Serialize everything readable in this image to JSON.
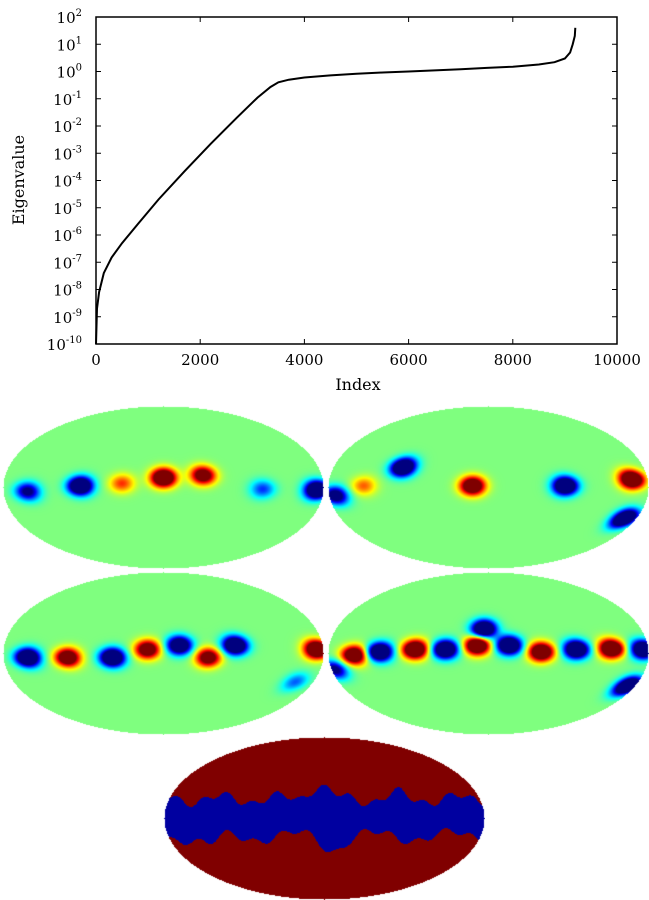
{
  "chart_data": [
    {
      "type": "line",
      "xlabel": "Index",
      "ylabel": "Eigenvalue",
      "xlim": [
        0,
        10000
      ],
      "ylim": [
        1e-10,
        100
      ],
      "yscale": "log",
      "grid": false,
      "x_ticks": [
        0,
        2000,
        4000,
        6000,
        8000,
        10000
      ],
      "x_tick_labels": [
        "0",
        "2000",
        "4000",
        "6000",
        "8000",
        "10000"
      ],
      "y_ticks": [
        {
          "base": "10",
          "exp": "-10",
          "value": 1e-10
        },
        {
          "base": "10",
          "exp": "-9",
          "value": 1e-09
        },
        {
          "base": "10",
          "exp": "-8",
          "value": 1e-08
        },
        {
          "base": "10",
          "exp": "-7",
          "value": 1e-07
        },
        {
          "base": "10",
          "exp": "-6",
          "value": 1e-06
        },
        {
          "base": "10",
          "exp": "-5",
          "value": 1e-05
        },
        {
          "base": "10",
          "exp": "-4",
          "value": 0.0001
        },
        {
          "base": "10",
          "exp": "-3",
          "value": 0.001
        },
        {
          "base": "10",
          "exp": "-2",
          "value": 0.01
        },
        {
          "base": "10",
          "exp": "-1",
          "value": 0.1
        },
        {
          "base": "10",
          "exp": "0",
          "value": 1
        },
        {
          "base": "10",
          "exp": "1",
          "value": 10
        },
        {
          "base": "10",
          "exp": "2",
          "value": 100
        }
      ],
      "series": [
        {
          "color": "#000000",
          "x": [
            0,
            20,
            60,
            150,
            300,
            500,
            800,
            1200,
            1700,
            2200,
            2700,
            3100,
            3350,
            3500,
            3700,
            4000,
            4500,
            5000,
            5500,
            6000,
            6500,
            7000,
            7500,
            8000,
            8500,
            8800,
            9000,
            9100,
            9150,
            9190,
            9200
          ],
          "y": [
            1e-10,
            2e-09,
            8e-09,
            4e-08,
            1.5e-07,
            5e-07,
            2.5e-06,
            2e-05,
            0.00022,
            0.0022,
            0.02,
            0.11,
            0.27,
            0.4,
            0.5,
            0.6,
            0.72,
            0.82,
            0.92,
            1.0,
            1.1,
            1.2,
            1.35,
            1.5,
            1.8,
            2.2,
            3.0,
            5.0,
            10.0,
            20.0,
            40.0
          ]
        }
      ]
    },
    {
      "type": "heatmap",
      "projection": "mollweide",
      "colormap": "jet",
      "panels": [
        {
          "id": "map-1",
          "blobs": [
            {
              "lon": 0,
              "lat": 0.12,
              "value": 1.0
            },
            {
              "lon": 0.25,
              "lat": 0.15,
              "value": 0.75
            },
            {
              "lon": -0.26,
              "lat": 0.05,
              "value": 0.35
            },
            {
              "lon": -0.52,
              "lat": 0.02,
              "value": -1.0
            },
            {
              "lon": 0.96,
              "lat": -0.03,
              "value": -1.0
            },
            {
              "lon": 0.62,
              "lat": -0.02,
              "value": -0.35
            },
            {
              "lon": -0.85,
              "lat": -0.05,
              "value": -0.6
            }
          ]
        },
        {
          "id": "map-2",
          "blobs": [
            {
              "lon": 0.9,
              "lat": 0.1,
              "value": 1.0
            },
            {
              "lon": -0.1,
              "lat": 0.02,
              "value": 0.9
            },
            {
              "lon": 0.48,
              "lat": 0.02,
              "value": -1.0
            },
            {
              "lon": -0.55,
              "lat": 0.25,
              "value": -1.0
            },
            {
              "lon": 0.92,
              "lat": -0.38,
              "value": -1.0
            },
            {
              "lon": -0.78,
              "lat": 0.02,
              "value": 0.3
            },
            {
              "lon": -0.96,
              "lat": -0.1,
              "value": -0.7
            }
          ]
        },
        {
          "id": "map-3",
          "blobs": [
            {
              "lon": 0.96,
              "lat": 0.05,
              "value": 1.0
            },
            {
              "lon": 0.45,
              "lat": 0.1,
              "value": -1.0
            },
            {
              "lon": 0.28,
              "lat": -0.05,
              "value": 0.75
            },
            {
              "lon": 0.1,
              "lat": 0.1,
              "value": -0.9
            },
            {
              "lon": -0.1,
              "lat": 0.05,
              "value": 0.8
            },
            {
              "lon": -0.32,
              "lat": -0.05,
              "value": -1.0
            },
            {
              "lon": -0.6,
              "lat": -0.05,
              "value": 0.85
            },
            {
              "lon": -0.85,
              "lat": -0.05,
              "value": -1.0
            },
            {
              "lon": 0.88,
              "lat": -0.35,
              "value": -0.3
            }
          ]
        },
        {
          "id": "map-4",
          "blobs": [
            {
              "lon": 0.97,
              "lat": 0.05,
              "value": -1.0
            },
            {
              "lon": 0.77,
              "lat": 0.06,
              "value": 1.0
            },
            {
              "lon": 0.55,
              "lat": 0.05,
              "value": -1.0
            },
            {
              "lon": 0.33,
              "lat": 0.02,
              "value": 0.95
            },
            {
              "lon": 0.13,
              "lat": 0.1,
              "value": -1.0
            },
            {
              "lon": -0.07,
              "lat": 0.1,
              "value": 1.0
            },
            {
              "lon": -0.03,
              "lat": 0.3,
              "value": -1.0
            },
            {
              "lon": -0.27,
              "lat": 0.05,
              "value": -1.0
            },
            {
              "lon": -0.46,
              "lat": 0.05,
              "value": 1.0
            },
            {
              "lon": -0.68,
              "lat": 0.02,
              "value": -1.0
            },
            {
              "lon": -0.84,
              "lat": -0.02,
              "value": 0.9
            },
            {
              "lon": 0.95,
              "lat": -0.4,
              "value": -1.0
            },
            {
              "lon": -0.98,
              "lat": -0.2,
              "value": -0.6
            }
          ]
        }
      ]
    },
    {
      "type": "heatmap",
      "projection": "mollweide",
      "colormap": "binary-mask",
      "colors": {
        "mask": "#0000a0",
        "sky": "#800000"
      }
    }
  ]
}
